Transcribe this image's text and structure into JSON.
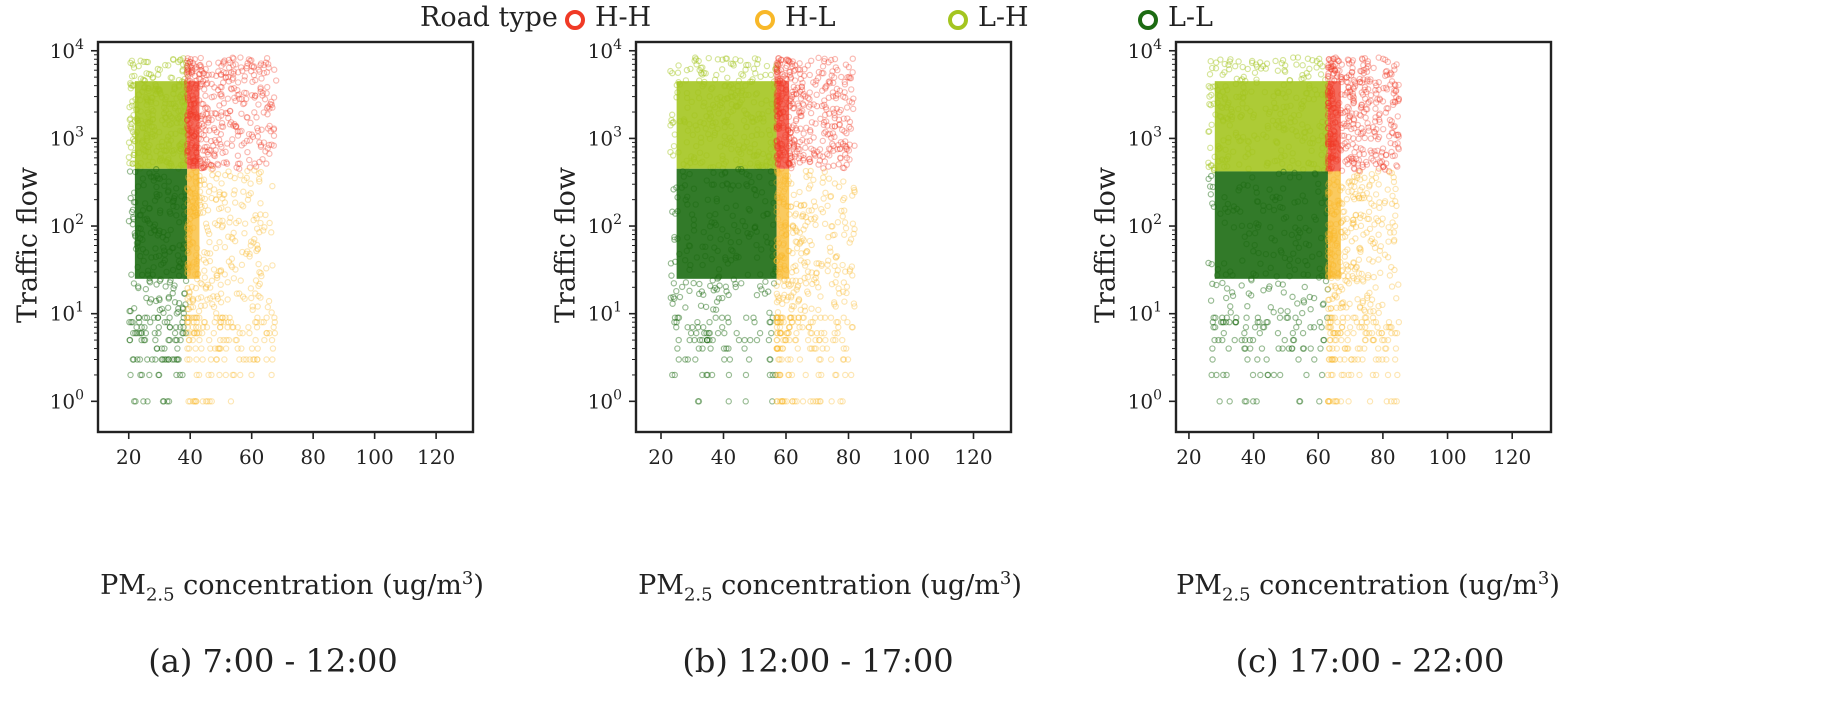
{
  "legend": {
    "title": "Road type",
    "items": [
      {
        "label": "H-H",
        "color": "#f03a26"
      },
      {
        "label": "H-L",
        "color": "#f8b829"
      },
      {
        "label": "L-H",
        "color": "#a4c520"
      },
      {
        "label": "L-L",
        "color": "#1c6b12"
      }
    ]
  },
  "axis_text": {
    "ylabel": "Traffic flow",
    "xlabel_prefix": "PM",
    "xlabel_sub": "2.5",
    "xlabel_mid": " concentration (ug/m",
    "xlabel_sup": "3",
    "xlabel_suffix": ")"
  },
  "chart_data": [
    {
      "type": "scatter",
      "caption": "(a) 7:00 - 12:00",
      "xlabel": "PM2.5 concentration (ug/m3)",
      "ylabel": "Traffic flow",
      "xlim": [
        10,
        132
      ],
      "ylim_log10": [
        -0.35,
        4.1
      ],
      "yscale": "log",
      "xticks": [
        20,
        40,
        60,
        80,
        100,
        120
      ],
      "yticks": [
        "10^0",
        "10^1",
        "10^2",
        "10^3",
        "10^4"
      ],
      "split": {
        "pm25": 39,
        "traffic_flow": 450
      },
      "x_range": [
        15,
        70
      ],
      "regions": [
        {
          "road_type": "L-H",
          "pm25": [
            22,
            39
          ],
          "traffic_flow": [
            450,
            6000
          ]
        },
        {
          "road_type": "H-H",
          "pm25": [
            39,
            68
          ],
          "traffic_flow": [
            450,
            6000
          ]
        },
        {
          "road_type": "L-L",
          "pm25": [
            22,
            39
          ],
          "traffic_flow": [
            1,
            450
          ]
        },
        {
          "road_type": "H-L",
          "pm25": [
            39,
            68
          ],
          "traffic_flow": [
            1,
            450
          ]
        }
      ]
    },
    {
      "type": "scatter",
      "caption": "(b) 12:00 - 17:00",
      "xlabel": "PM2.5 concentration (ug/m3)",
      "ylabel": "Traffic flow",
      "xlim": [
        12,
        132
      ],
      "ylim_log10": [
        -0.35,
        4.1
      ],
      "yscale": "log",
      "xticks": [
        20,
        40,
        60,
        80,
        100,
        120
      ],
      "yticks": [
        "10^0",
        "10^1",
        "10^2",
        "10^3",
        "10^4"
      ],
      "split": {
        "pm25": 57,
        "traffic_flow": 450
      },
      "x_range": [
        20,
        82
      ],
      "regions": [
        {
          "road_type": "L-H",
          "pm25": [
            25,
            57
          ],
          "traffic_flow": [
            450,
            6000
          ]
        },
        {
          "road_type": "H-H",
          "pm25": [
            57,
            82
          ],
          "traffic_flow": [
            450,
            6000
          ]
        },
        {
          "road_type": "L-L",
          "pm25": [
            25,
            57
          ],
          "traffic_flow": [
            1,
            450
          ]
        },
        {
          "road_type": "H-L",
          "pm25": [
            57,
            82
          ],
          "traffic_flow": [
            1,
            450
          ]
        }
      ]
    },
    {
      "type": "scatter",
      "caption": "(c) 17:00 - 22:00",
      "xlabel": "PM2.5 concentration (ug/m3)",
      "ylabel": "Traffic flow",
      "xlim": [
        16,
        132
      ],
      "ylim_log10": [
        -0.35,
        4.1
      ],
      "yscale": "log",
      "xticks": [
        20,
        40,
        60,
        80,
        100,
        120
      ],
      "yticks": [
        "10^0",
        "10^1",
        "10^2",
        "10^3",
        "10^4"
      ],
      "split": {
        "pm25": 63,
        "traffic_flow": 420
      },
      "x_range": [
        24,
        95
      ],
      "regions": [
        {
          "road_type": "L-H",
          "pm25": [
            28,
            63
          ],
          "traffic_flow": [
            420,
            6000
          ]
        },
        {
          "road_type": "H-H",
          "pm25": [
            63,
            85
          ],
          "traffic_flow": [
            420,
            6000
          ]
        },
        {
          "road_type": "L-L",
          "pm25": [
            28,
            63
          ],
          "traffic_flow": [
            1,
            420
          ]
        },
        {
          "road_type": "H-L",
          "pm25": [
            63,
            85
          ],
          "traffic_flow": [
            1,
            420
          ]
        }
      ]
    }
  ]
}
